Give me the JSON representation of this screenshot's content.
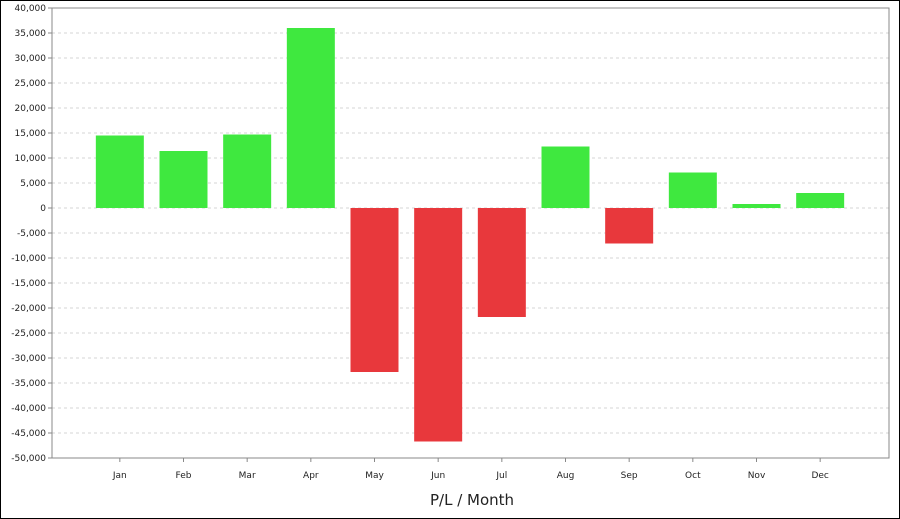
{
  "chart_data": {
    "type": "bar",
    "title": "",
    "xlabel": "P/L / Month",
    "ylabel": "",
    "categories": [
      "Jan",
      "Feb",
      "Mar",
      "Apr",
      "May",
      "Jun",
      "Jul",
      "Aug",
      "Sep",
      "Oct",
      "Nov",
      "Dec"
    ],
    "values": [
      14500,
      11400,
      14700,
      36000,
      -32800,
      -46700,
      -21800,
      12300,
      -7100,
      7100,
      800,
      3000
    ],
    "ylim": [
      -50000,
      40000
    ],
    "yticks": [
      40000,
      35000,
      30000,
      25000,
      20000,
      15000,
      10000,
      5000,
      0,
      -5000,
      -10000,
      -15000,
      -20000,
      -25000,
      -30000,
      -35000,
      -40000,
      -45000,
      -50000
    ],
    "ytick_labels": [
      "40,000",
      "35,000",
      "30,000",
      "25,000",
      "20,000",
      "15,000",
      "10,000",
      "5,000",
      "0",
      "-5,000",
      "-10,000",
      "-15,000",
      "-20,000",
      "-25,000",
      "-30,000",
      "-35,000",
      "-40,000",
      "-45,000",
      "-50,000"
    ],
    "grid": true,
    "colors": {
      "positive": "#3fe83f",
      "negative": "#e8383c",
      "grid": "#d6d6d6",
      "axis": "#888888"
    }
  }
}
